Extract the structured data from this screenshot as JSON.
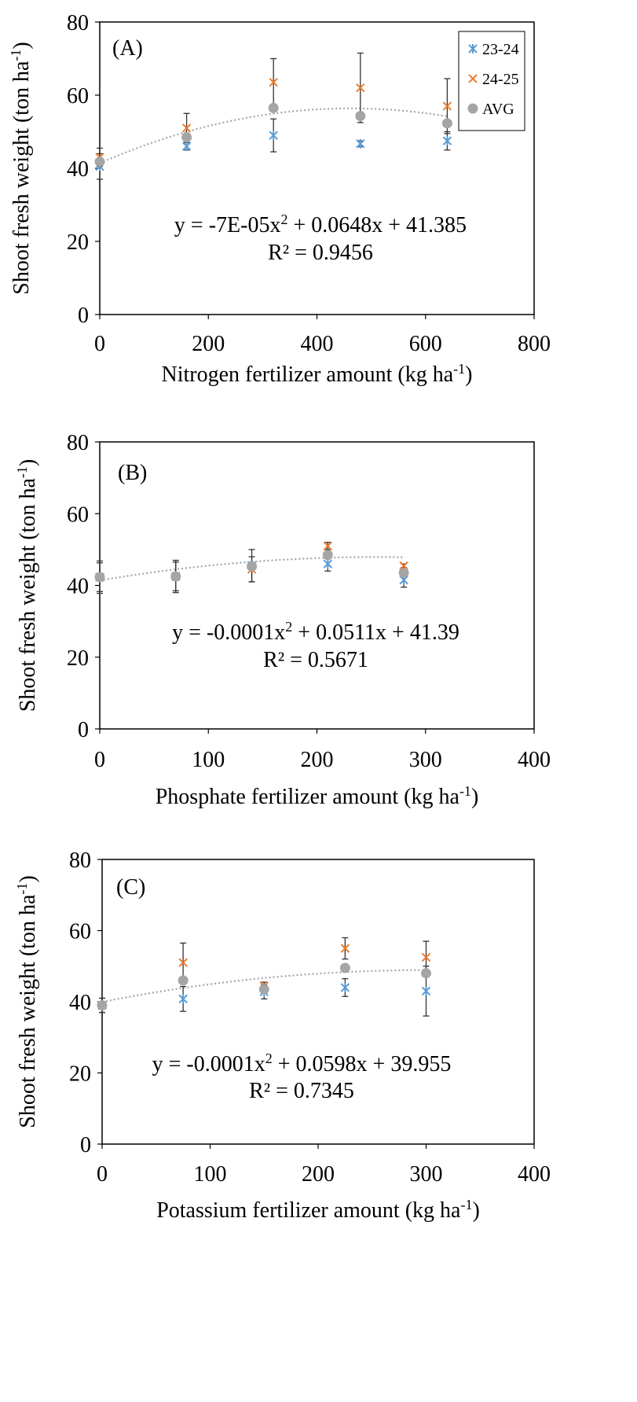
{
  "chart_data": [
    {
      "type": "scatter",
      "panel_label": "(A)",
      "xlabel": "Nitrogen fertilizer amount (kg ha",
      "xlabel_sup": "-1",
      "xlabel_end": ")",
      "ylabel": "Shoot fresh weight  (ton ha",
      "ylabel_sup": "-1",
      "ylabel_end": ")",
      "xlim": [
        0,
        800
      ],
      "ylim": [
        0,
        80
      ],
      "xticks": [
        0,
        200,
        400,
        600,
        800
      ],
      "yticks": [
        0,
        20,
        40,
        60,
        80
      ],
      "grid": false,
      "legend": {
        "placement": "top-right",
        "entries": [
          "23-24",
          "24-25",
          "AVG"
        ]
      },
      "series": [
        {
          "name": "23-24",
          "marker": "asterisk",
          "color": "#5B9BD5",
          "x": [
            0,
            160,
            320,
            480,
            640
          ],
          "y": [
            40.5,
            46.0,
            49.0,
            46.7,
            47.5
          ],
          "err": [
            3.5,
            1.0,
            4.5,
            0.8,
            2.5
          ]
        },
        {
          "name": "24-25",
          "marker": "x",
          "color": "#ED7D31",
          "x": [
            0,
            160,
            320,
            480,
            640
          ],
          "y": [
            43.0,
            51.0,
            63.5,
            62.0,
            57.0
          ],
          "err": [
            2.5,
            4.0,
            6.5,
            9.5,
            7.5
          ]
        },
        {
          "name": "AVG",
          "marker": "circle",
          "color": "#A5A5A5",
          "x": [
            0,
            160,
            320,
            480,
            640
          ],
          "y": [
            41.8,
            48.5,
            56.5,
            54.3,
            52.3
          ],
          "err": [
            0,
            0,
            0,
            0,
            0
          ]
        }
      ],
      "trendline": {
        "a": -7e-05,
        "b": 0.0648,
        "c": 41.385,
        "x_range": [
          0,
          640
        ]
      },
      "equation": "y = -7E-05x",
      "equation_sup": "2",
      "equation_end": " + 0.0648x + 41.385",
      "r2": "R² = 0.9456"
    },
    {
      "type": "scatter",
      "panel_label": "(B)",
      "xlabel": "Phosphate fertilizer amount (kg ha",
      "xlabel_sup": "-1",
      "xlabel_end": ")",
      "ylabel": "Shoot fresh weight  (ton ha",
      "ylabel_sup": "-1",
      "ylabel_end": ")",
      "xlim": [
        0,
        400
      ],
      "ylim": [
        0,
        80
      ],
      "xticks": [
        0,
        100,
        200,
        300,
        400
      ],
      "yticks": [
        0,
        20,
        40,
        60,
        80
      ],
      "grid": false,
      "series": [
        {
          "name": "23-24",
          "marker": "asterisk",
          "color": "#5B9BD5",
          "x": [
            0,
            70,
            140,
            210,
            280
          ],
          "y": [
            42.3,
            42.5,
            45.5,
            46.0,
            41.5
          ],
          "err": [
            4.0,
            4.0,
            4.5,
            2.0,
            2.0
          ]
        },
        {
          "name": "24-25",
          "marker": "x",
          "color": "#ED7D31",
          "x": [
            0,
            70,
            140,
            210,
            280
          ],
          "y": [
            42.3,
            42.5,
            44.5,
            51.0,
            45.5
          ],
          "err": [
            4.5,
            4.5,
            3.5,
            1.0,
            0.5
          ]
        },
        {
          "name": "AVG",
          "marker": "circle",
          "color": "#A5A5A5",
          "x": [
            0,
            70,
            140,
            210,
            280
          ],
          "y": [
            42.3,
            42.5,
            45.3,
            48.5,
            43.5
          ],
          "err": [
            0,
            0,
            0,
            0,
            0
          ]
        }
      ],
      "trendline": {
        "a": -0.0001,
        "b": 0.0511,
        "c": 41.39,
        "x_range": [
          0,
          280
        ]
      },
      "equation": "y = -0.0001x",
      "equation_sup": "2",
      "equation_end": " + 0.0511x + 41.39",
      "r2": "R² = 0.5671"
    },
    {
      "type": "scatter",
      "panel_label": "(C)",
      "xlabel": "Potassium fertilizer amount (kg ha",
      "xlabel_sup": "-1",
      "xlabel_end": ")",
      "ylabel": "Shoot fresh weight  (ton ha",
      "ylabel_sup": "-1",
      "ylabel_end": ")",
      "xlim": [
        0,
        400
      ],
      "ylim": [
        0,
        80
      ],
      "xticks": [
        0,
        100,
        200,
        300,
        400
      ],
      "yticks": [
        0,
        20,
        40,
        60,
        80
      ],
      "grid": false,
      "series": [
        {
          "name": "23-24",
          "marker": "asterisk",
          "color": "#5B9BD5",
          "x": [
            0,
            75,
            150,
            225,
            300
          ],
          "y": [
            39.0,
            40.8,
            42.8,
            44.0,
            43.0
          ],
          "err": [
            2.0,
            3.5,
            2.0,
            2.5,
            7.0
          ]
        },
        {
          "name": "24-25",
          "marker": "x",
          "color": "#ED7D31",
          "x": [
            0,
            75,
            150,
            225,
            300
          ],
          "y": [
            39.0,
            51.0,
            44.5,
            55.0,
            52.5
          ],
          "err": [
            2.0,
            5.5,
            1.0,
            3.0,
            4.5
          ]
        },
        {
          "name": "AVG",
          "marker": "circle",
          "color": "#A5A5A5",
          "x": [
            0,
            75,
            150,
            225,
            300
          ],
          "y": [
            39.0,
            46.0,
            43.5,
            49.5,
            48.0
          ],
          "err": [
            0,
            0,
            0,
            0,
            0
          ]
        }
      ],
      "trendline": {
        "a": -0.0001,
        "b": 0.0598,
        "c": 39.955,
        "x_range": [
          0,
          300
        ]
      },
      "equation": "y = -0.0001x",
      "equation_sup": "2",
      "equation_end": " + 0.0598x + 39.955",
      "r2": "R² = 0.7345"
    }
  ]
}
